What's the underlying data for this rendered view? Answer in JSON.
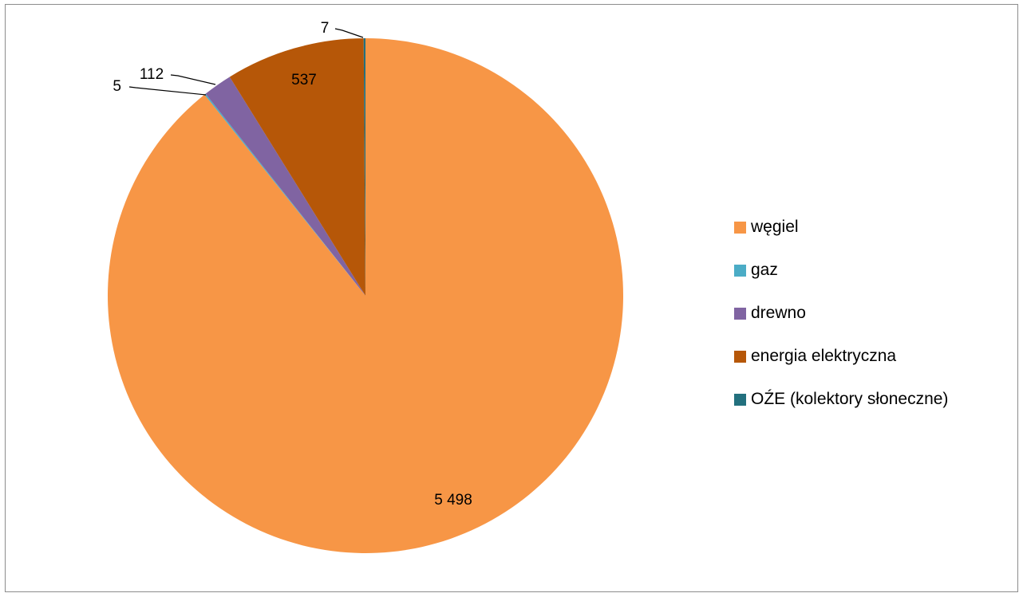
{
  "chart_data": {
    "type": "pie",
    "categories": [
      "węgiel",
      "gaz",
      "drewno",
      "energia elektryczna",
      "OŹE (kolektory słoneczne)"
    ],
    "values": [
      5498,
      5,
      112,
      537,
      7
    ],
    "data_labels": [
      "5 498",
      "5",
      "112",
      "537",
      "7"
    ],
    "colors": [
      "#f79646",
      "#4bacc6",
      "#8064a2",
      "#b65708",
      "#23707e"
    ],
    "start_angle_deg": 0,
    "direction": "clockwise",
    "legend_position": "right"
  }
}
